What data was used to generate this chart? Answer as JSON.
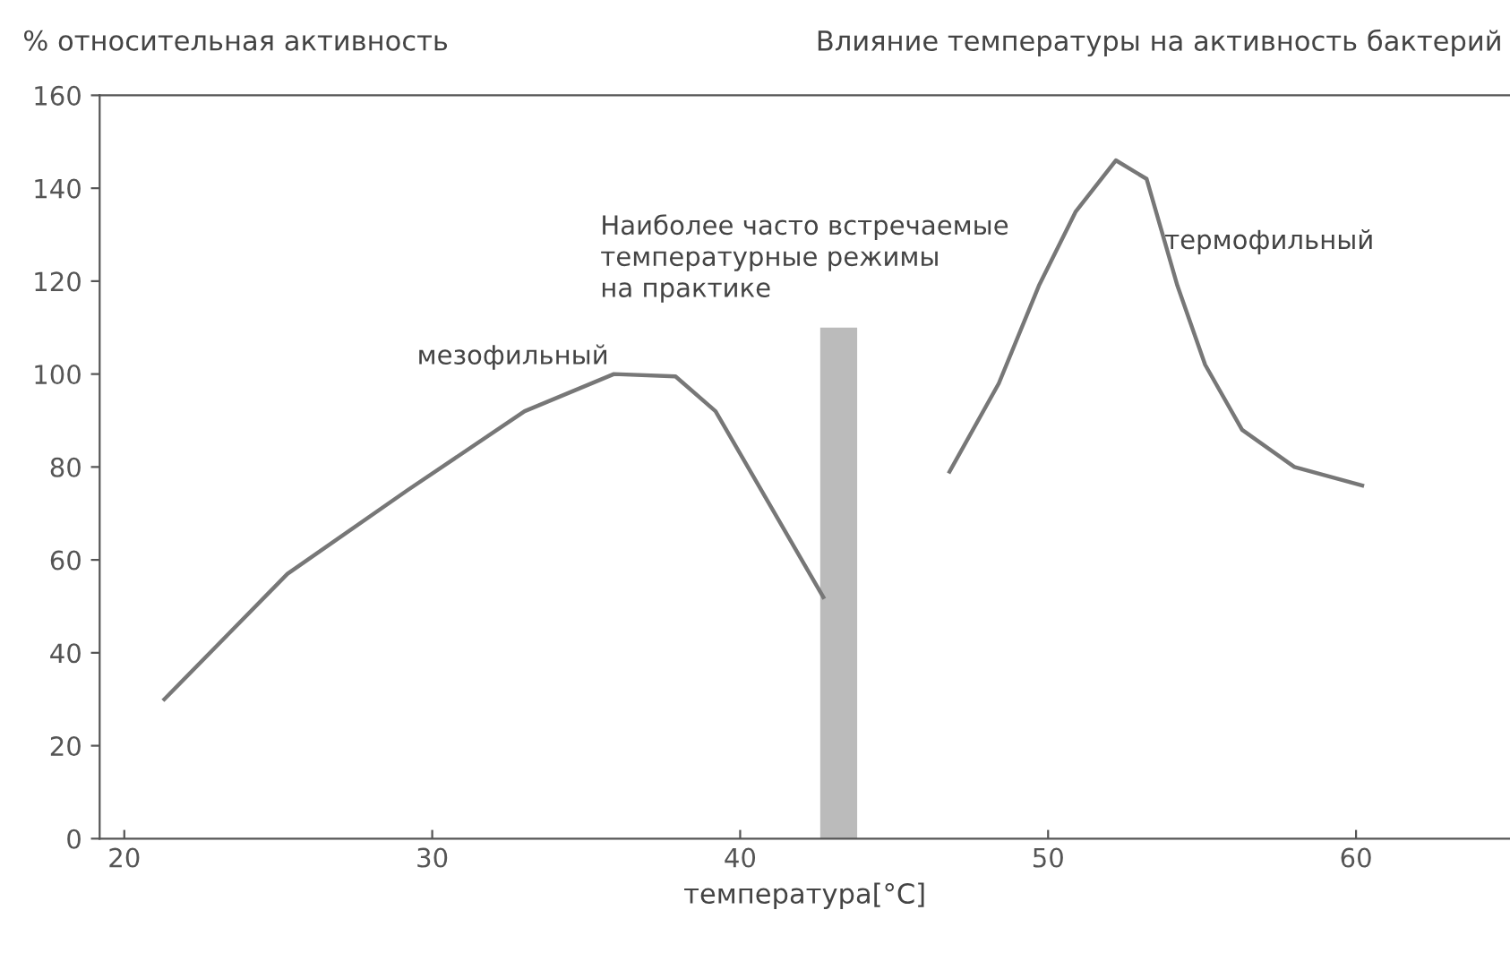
{
  "chart_data": {
    "type": "line",
    "title": "Влияние температуры на активность бактерий",
    "ylabel": "% относительная активность",
    "xlabel": "температура[°C]",
    "series": [
      {
        "color": "#777777",
        "x": [
          21.3,
          25.3,
          29.2,
          33.0,
          35.9,
          37.9,
          39.2,
          42.7
        ],
        "values": [
          30,
          57,
          75,
          92,
          100,
          99.5,
          92,
          52
        ]
      },
      {
        "color": "#777777",
        "x": [
          46.8,
          48.4,
          49.7,
          50.9,
          52.2,
          53.2,
          54.2,
          55.1,
          56.3,
          58.0,
          60.2
        ],
        "values": [
          79,
          98,
          119,
          135,
          146,
          142,
          119,
          102,
          88,
          80,
          76
        ]
      },
      {
        "type": "area",
        "color": "#bbbbbb",
        "x": [
          42.6,
          43.8
        ],
        "values": [
          110,
          110
        ]
      }
    ],
    "annotations": [
      "мезофильный",
      "Наиболее часто встречаемые\nтемпературные режимы\nна практике",
      "термофильный"
    ],
    "xlim": [
      19.2,
      65
    ],
    "xticks": [
      20,
      30,
      40,
      50,
      60
    ],
    "ylim": [
      0,
      160
    ],
    "yticks": [
      0,
      20,
      40,
      60,
      80,
      100,
      120,
      140,
      160
    ],
    "grid": false,
    "legend": false,
    "marker": "none",
    "line_style": "solid"
  }
}
